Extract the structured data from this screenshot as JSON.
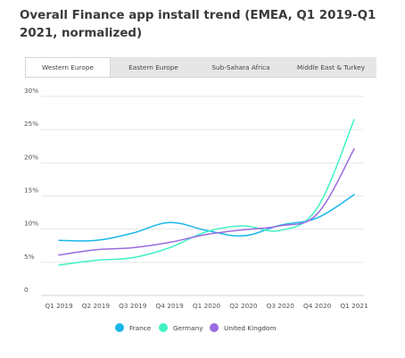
{
  "title": "Overall Finance app install trend (EMEA, Q1 2019-Q1 2021, normalized)",
  "tabs": [
    {
      "label": "Western Europe",
      "active": true
    },
    {
      "label": "Eastern Europe",
      "active": false
    },
    {
      "label": "Sub-Sahara Africa",
      "active": false
    },
    {
      "label": "Middle East & Turkey",
      "active": false
    }
  ],
  "chart_data": {
    "type": "line",
    "title": "Overall Finance app install trend (EMEA, Q1 2019-Q1 2021, normalized)",
    "categories": [
      "Q1 2019",
      "Q2 2019",
      "Q3 2019",
      "Q4 2019",
      "Q1 2020",
      "Q2 2020",
      "Q3 2020",
      "Q4 2020",
      "Q1 2021"
    ],
    "series": [
      {
        "name": "France",
        "color": "#1ab7ea",
        "values": [
          8.3,
          8.3,
          9.4,
          11.0,
          9.8,
          9.0,
          10.6,
          11.7,
          15.2
        ]
      },
      {
        "name": "Germany",
        "color": "#3ff2c4",
        "values": [
          4.6,
          5.3,
          5.7,
          7.2,
          9.6,
          10.5,
          9.8,
          13.2,
          26.5
        ]
      },
      {
        "name": "United Kingdom",
        "color": "#9b6ae0",
        "values": [
          6.1,
          6.9,
          7.2,
          8.0,
          9.2,
          9.9,
          10.5,
          12.3,
          22.1
        ]
      }
    ],
    "y_ticks": [
      "0",
      "5%",
      "10%",
      "15%",
      "20%",
      "25%",
      "30%"
    ],
    "ylim": [
      0,
      30
    ],
    "grid": true,
    "legend_position": "bottom"
  }
}
